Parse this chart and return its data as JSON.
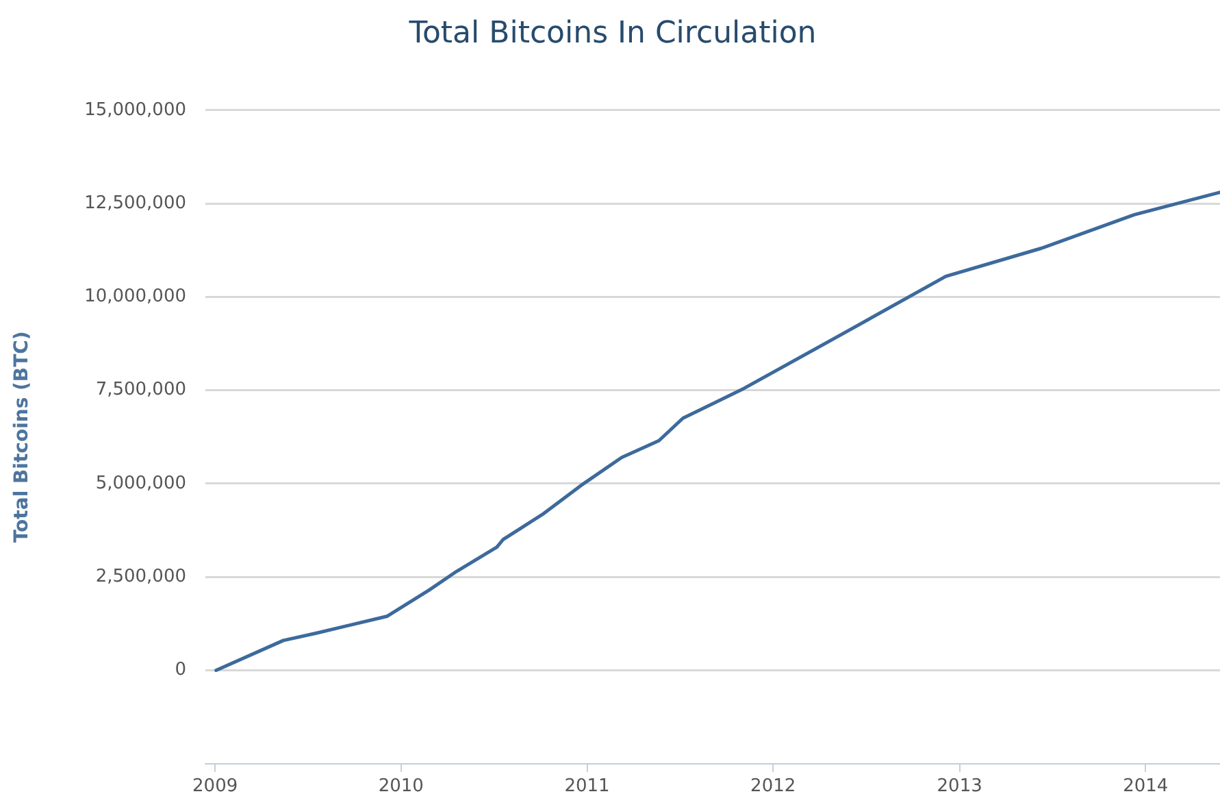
{
  "chart_data": {
    "type": "line",
    "title": "Total Bitcoins In Circulation",
    "ylabel": "Total Bitcoins (BTC)",
    "x": [
      "2009-01-03",
      "2009-05-15",
      "2009-07-20",
      "2009-12-05",
      "2010-02-25",
      "2010-04-20",
      "2010-07-08",
      "2010-07-20",
      "2010-10-08",
      "2010-12-20",
      "2011-03-10",
      "2011-05-22",
      "2011-07-08",
      "2011-11-05",
      "2012-05-15",
      "2012-12-05",
      "2013-06-10",
      "2013-12-10",
      "2014-05-27"
    ],
    "series": [
      {
        "color": "#3d6a9c",
        "values": [
          0,
          800000,
          1000000,
          1450000,
          2150000,
          2650000,
          3300000,
          3500000,
          4200000,
          4950000,
          5700000,
          6150000,
          6750000,
          7550000,
          9000000,
          10550000,
          11300000,
          12200000,
          12800000
        ]
      }
    ],
    "xlim": [
      "2008-12-13",
      "2014-05-27"
    ],
    "xticks": [
      "2009",
      "2010",
      "2011",
      "2012",
      "2013",
      "2014"
    ],
    "ylim": [
      -2500000,
      15000000
    ],
    "yticks": [
      0,
      {
        "value": 2500000,
        "label": "2,500,000"
      },
      {
        "value": 5000000,
        "label": "5,000,000"
      },
      {
        "value": 7500000,
        "label": "7,500,000"
      },
      {
        "value": 10000000,
        "label": "10,000,000"
      },
      {
        "value": 12500000,
        "label": "12,500,000"
      },
      {
        "value": 15000000,
        "label": "15,000,000"
      }
    ],
    "grid": "y",
    "legend": false,
    "marker": "none",
    "line_style": "solid"
  }
}
